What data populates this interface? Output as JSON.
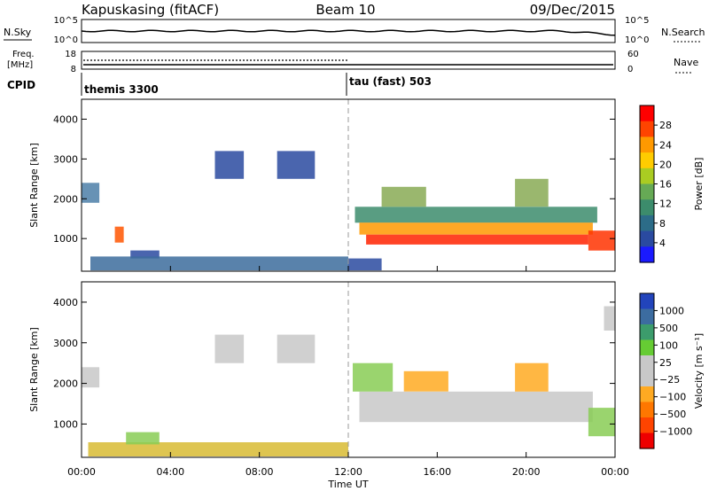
{
  "header": {
    "station": "Kapuskasing (fitACF)",
    "beam": "Beam 10",
    "date": "09/Dec/2015"
  },
  "noise_panel": {
    "left_label": "N.Sky",
    "right_label": "N.Search",
    "left_ticks": [
      "10^5",
      "10^0"
    ],
    "right_ticks": [
      "10^5",
      "10^0"
    ]
  },
  "freq_panel": {
    "left_label_line1": "Freq.",
    "left_label_line2": "[MHz]",
    "left_ticks": [
      "18",
      "8"
    ],
    "right_label": "Nave",
    "right_ticks": [
      "60",
      "0"
    ]
  },
  "cpid_panel": {
    "label": "CPID",
    "programs": [
      "themis 3300",
      "tau (fast) 503"
    ]
  },
  "chart_data": [
    {
      "type": "heatmap",
      "name": "power",
      "ylabel": "Slant Range [km]",
      "ylim": [
        180,
        4500
      ],
      "yticks": [
        "1000",
        "2000",
        "3000",
        "4000"
      ],
      "x_ticks": [
        "00:00",
        "04:00",
        "08:00",
        "12:00",
        "16:00",
        "20:00",
        "00:00"
      ],
      "colorbar_label": "Power [dB]",
      "colorbar_ticks": [
        "28",
        "24",
        "20",
        "16",
        "12",
        "8",
        "4"
      ],
      "colorbar_colors": [
        "#ff0000",
        "#ff4400",
        "#ff9900",
        "#ffcc00",
        "#aacc22",
        "#66aa55",
        "#3c8c6c",
        "#2c6c88",
        "#2a4aa0",
        "#1a1aff"
      ],
      "regions": [
        {
          "t0": 0.0,
          "t1": 0.8,
          "r0": 1900,
          "r1": 2400,
          "color": "#4c7fa8"
        },
        {
          "t0": 1.5,
          "t1": 1.9,
          "r0": 900,
          "r1": 1300,
          "color": "#ff5500"
        },
        {
          "t0": 2.2,
          "t1": 3.5,
          "r0": 500,
          "r1": 700,
          "color": "#2a4aa0"
        },
        {
          "t0": 6.0,
          "t1": 7.3,
          "r0": 2500,
          "r1": 3200,
          "color": "#2a4aa0"
        },
        {
          "t0": 8.8,
          "t1": 10.5,
          "r0": 2500,
          "r1": 3200,
          "color": "#2a4aa0"
        },
        {
          "t0": 0.4,
          "t1": 12.0,
          "r0": 200,
          "r1": 550,
          "color": "#3c6c9c"
        },
        {
          "t0": 12.3,
          "t1": 23.2,
          "r0": 1400,
          "r1": 1800,
          "color": "#3c8c6c"
        },
        {
          "t0": 12.5,
          "t1": 23.0,
          "r0": 1100,
          "r1": 1400,
          "color": "#ff9900"
        },
        {
          "t0": 12.8,
          "t1": 22.8,
          "r0": 850,
          "r1": 1100,
          "color": "#ff2200"
        },
        {
          "t0": 13.5,
          "t1": 15.5,
          "r0": 1800,
          "r1": 2300,
          "color": "#88aa55"
        },
        {
          "t0": 19.5,
          "t1": 21.0,
          "r0": 1800,
          "r1": 2500,
          "color": "#88aa55"
        },
        {
          "t0": 22.8,
          "t1": 24.0,
          "r0": 700,
          "r1": 1200,
          "color": "#ff3300"
        },
        {
          "t0": 12.0,
          "t1": 13.5,
          "r0": 200,
          "r1": 500,
          "color": "#2a4aa0"
        }
      ]
    },
    {
      "type": "heatmap",
      "name": "velocity",
      "ylabel": "Slant Range [km]",
      "ylim": [
        180,
        4500
      ],
      "yticks": [
        "1000",
        "2000",
        "3000",
        "4000"
      ],
      "x_ticks": [
        "00:00",
        "04:00",
        "08:00",
        "12:00",
        "16:00",
        "20:00",
        "00:00"
      ],
      "xlabel": "Time UT",
      "colorbar_label": "Velocity [m s⁻¹]",
      "colorbar_ticks": [
        "1000",
        "500",
        "100",
        "25",
        "−25",
        "−100",
        "−500",
        "−1000"
      ],
      "colorbar_colors": [
        "#2244bb",
        "#3c6ca0",
        "#3c9c6c",
        "#66cc33",
        "#c8c8c8",
        "#c8c8c8",
        "#ffaa22",
        "#ff7700",
        "#ff4400",
        "#ee0000"
      ],
      "regions": [
        {
          "t0": 0.0,
          "t1": 0.8,
          "r0": 1900,
          "r1": 2400,
          "color": "#c8c8c8"
        },
        {
          "t0": 0.3,
          "t1": 12.0,
          "r0": 200,
          "r1": 550,
          "color": "#d8bb33"
        },
        {
          "t0": 2.0,
          "t1": 3.5,
          "r0": 500,
          "r1": 800,
          "color": "#88cc55"
        },
        {
          "t0": 6.0,
          "t1": 7.3,
          "r0": 2500,
          "r1": 3200,
          "color": "#c8c8c8"
        },
        {
          "t0": 8.8,
          "t1": 10.5,
          "r0": 2500,
          "r1": 3200,
          "color": "#c8c8c8"
        },
        {
          "t0": 12.5,
          "t1": 23.0,
          "r0": 1050,
          "r1": 1800,
          "color": "#c8c8c8"
        },
        {
          "t0": 12.2,
          "t1": 14.0,
          "r0": 1800,
          "r1": 2500,
          "color": "#88cc55"
        },
        {
          "t0": 14.5,
          "t1": 16.5,
          "r0": 1800,
          "r1": 2300,
          "color": "#ffaa22"
        },
        {
          "t0": 19.5,
          "t1": 21.0,
          "r0": 1800,
          "r1": 2500,
          "color": "#ffaa22"
        },
        {
          "t0": 22.8,
          "t1": 24.0,
          "r0": 700,
          "r1": 1400,
          "color": "#88cc55"
        },
        {
          "t0": 23.5,
          "t1": 24.0,
          "r0": 3300,
          "r1": 3900,
          "color": "#c8c8c8"
        }
      ]
    }
  ]
}
